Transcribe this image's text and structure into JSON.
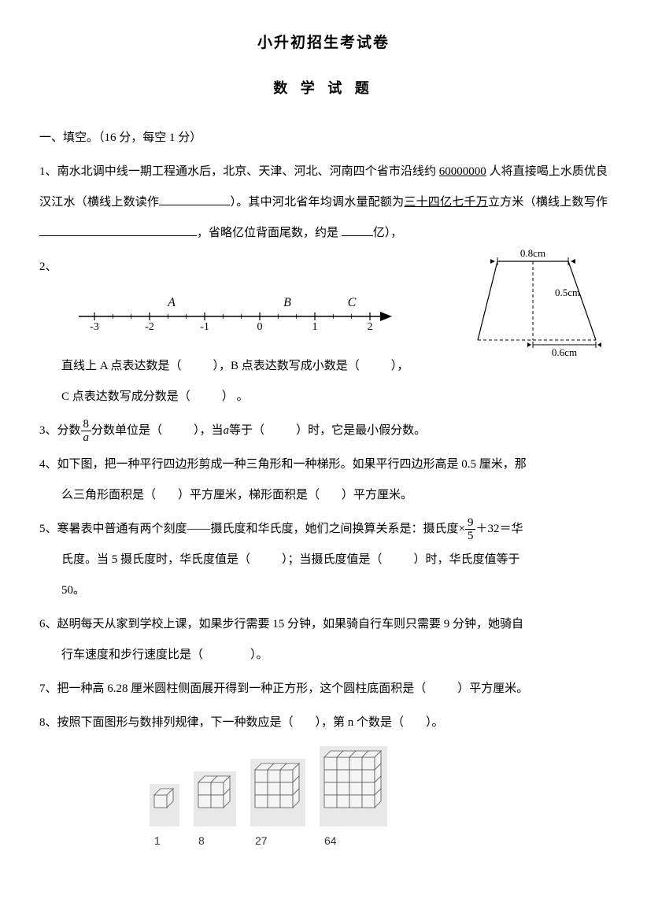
{
  "title": "小升初招生考试卷",
  "subtitle": "数 学 试 题",
  "section1": "一、填空。（16 分，每空 1 分）",
  "q1": {
    "prefix": "1、南水北调中线一期工程通水后，北京、天津、河北、河南四个省市沿线约 ",
    "underlined1": "60000000",
    "after1": " 人将直接喝上水质优良汉江水（横线上数读作",
    "after_blank1": "）。其中河北省年均调水量配额为",
    "underlined2": "三十四亿七千万",
    "after2": "立方米（横线上数写作",
    "after_blank2": "，省略亿位背面尾数，约是",
    "after_blank3": "亿），"
  },
  "q2": {
    "prefix": "2、",
    "line1a": "直线上 A 点表达数是（",
    "line1b": "），B 点表达数写成小数是（",
    "line1c": "），",
    "line2a": "C 点表达数写成分数是（",
    "line2b": "） 。",
    "numberline": {
      "ticks": [
        -3,
        -2,
        -1,
        0,
        1,
        2
      ],
      "letters": [
        {
          "label": "A",
          "x": -1.6
        },
        {
          "label": "B",
          "x": 0.5
        },
        {
          "label": "C",
          "x": 1.67
        }
      ]
    },
    "trap": {
      "top": "0.8cm",
      "height": "0.5cm",
      "base_half": "0.6cm"
    }
  },
  "q3": {
    "a": "3、分数",
    "frac_num": "8",
    "frac_den": "a",
    "b": "分数单位是（",
    "c": "），当",
    "var": "a",
    "d": "等于（",
    "e": "）时，它是最小假分数。"
  },
  "q4": {
    "a": "4、如下图，把一种平行四边形剪成一种三角形和一种梯形。如果平行四边形高是 0.5 厘米，那",
    "b": "么三角形面积是（",
    "c": "）平方厘米，梯形面积是（",
    "d": "）平方厘米。"
  },
  "q5": {
    "a": "5、寒暑表中普通有两个刻度——摄氏度和华氏度，她们之间换算关系是：摄氏度×",
    "frac_num": "9",
    "frac_den": "5",
    "b": "＋32＝华",
    "c": "氏度。当 5 摄氏度时，华氏度值是（",
    "d": "）；当摄氏度值是（",
    "e": "）时，华氏度值等于",
    "f": "50。"
  },
  "q6": {
    "a": "6、赵明每天从家到学校上课，如果步行需要 15 分钟，如果骑自行车则只需要 9 分钟，她骑自",
    "b": "行车速度和步行速度比是（",
    "c": "）。"
  },
  "q7": {
    "a": "7、把一种高 6.28 厘米圆柱侧面展开得到一种正方形，这个圆柱底面积是（",
    "b": "）平方厘米。"
  },
  "q8": {
    "a": "8、按照下面图形与数排列规律，下一种数应是（",
    "b": "），第 n 个数是（",
    "c": "）。",
    "cubes": [
      {
        "n": 1,
        "label": "1"
      },
      {
        "n": 2,
        "label": "8"
      },
      {
        "n": 3,
        "label": "27"
      },
      {
        "n": 4,
        "label": "64"
      }
    ]
  },
  "colors": {
    "text": "#000000",
    "bg": "#ffffff",
    "cube_bg": "#e8e8e8",
    "cube_fill": "#f5f5f5",
    "cube_stroke": "#555555"
  }
}
